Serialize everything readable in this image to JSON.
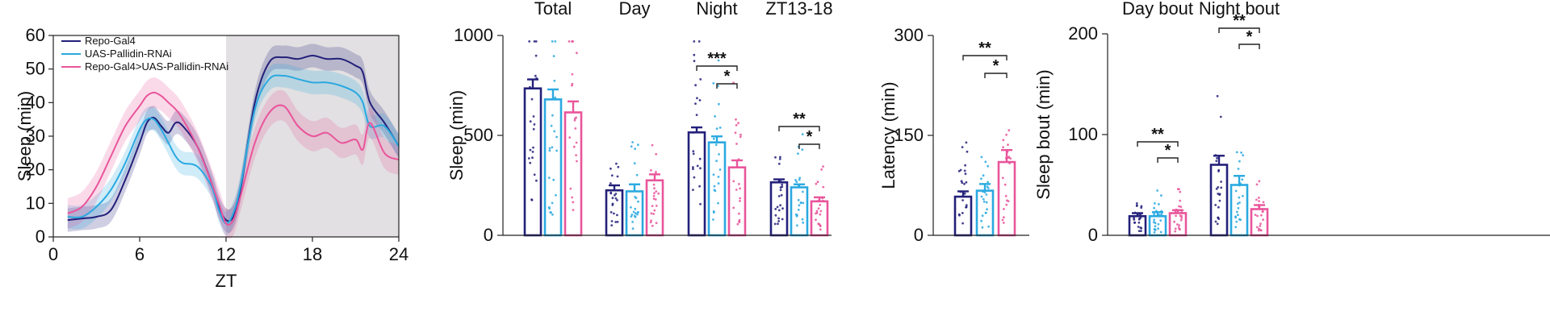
{
  "colors": {
    "control": "#23207a",
    "uas": "#2aa9e0",
    "exp": "#e9559b",
    "night_shade": "#e2e0e2"
  },
  "chart_data": [
    {
      "type": "line",
      "title": "",
      "xlabel": "ZT",
      "ylabel": "Sleep (min)",
      "xlim": [
        0,
        24
      ],
      "ylim": [
        0,
        60
      ],
      "xticks": [
        "0",
        "6",
        "12",
        "18",
        "24"
      ],
      "yticks": [
        "0",
        "10",
        "20",
        "30",
        "40",
        "50",
        "60"
      ],
      "night_shading": [
        12,
        24
      ],
      "x": [
        1,
        2,
        3,
        4,
        5,
        6,
        6.5,
        7,
        7.5,
        8,
        8.5,
        9,
        10,
        11,
        11.5,
        12,
        12.5,
        13,
        14,
        15,
        16,
        17,
        18,
        19,
        20,
        21,
        21.5,
        22,
        23,
        24
      ],
      "series": [
        {
          "name": "Repo-Gal4",
          "color_key": "control",
          "error": 3.5,
          "values": [
            5,
            5.5,
            6,
            8,
            17,
            28,
            34,
            35.5,
            33,
            31,
            34,
            33,
            27,
            16,
            9,
            5,
            6,
            14,
            40,
            52,
            53.5,
            53,
            54,
            53,
            53,
            51,
            49,
            40,
            34,
            27
          ]
        },
        {
          "name": "UAS-Pallidin-RNAi",
          "color_key": "uas",
          "error": 3.5,
          "values": [
            6,
            6,
            9,
            14,
            22,
            32,
            35,
            35,
            32,
            28,
            24,
            22,
            21,
            15,
            8,
            4,
            7,
            15,
            38,
            47,
            48,
            47,
            46,
            46,
            45,
            43,
            40,
            33,
            33,
            27
          ]
        },
        {
          "name": "Repo-Gal4>UAS-Pallidin-RNAi",
          "color_key": "exp",
          "error": 4.5,
          "values": [
            7,
            9,
            15,
            24,
            33,
            39,
            42,
            43,
            42,
            40,
            38,
            35,
            27,
            16,
            10,
            4,
            5,
            12,
            28,
            37,
            39,
            33,
            30,
            31,
            28,
            29,
            26,
            34,
            25,
            23
          ]
        }
      ]
    },
    {
      "type": "bar",
      "title": "",
      "ylabel": "Sleep (min)",
      "ylim": [
        0,
        1000
      ],
      "yticks": [
        "0",
        "500",
        "1000"
      ],
      "categories": [
        "Total",
        "Day",
        "Night",
        "ZT13-18"
      ],
      "series": [
        {
          "name": "Repo-Gal4",
          "color_key": "control",
          "values": [
            735,
            225,
            515,
            265
          ],
          "sem": [
            45,
            25,
            25,
            15
          ]
        },
        {
          "name": "UAS-Pallidin-RNAi",
          "color_key": "uas",
          "values": [
            680,
            220,
            465,
            240
          ],
          "sem": [
            50,
            35,
            30,
            15
          ]
        },
        {
          "name": "Repo-Gal4>UAS-Pallidin-RNAi",
          "color_key": "exp",
          "values": [
            615,
            275,
            340,
            170
          ],
          "sem": [
            55,
            30,
            35,
            20
          ]
        }
      ],
      "significance": [
        {
          "category": "Night",
          "from": 0,
          "to": 2,
          "label": "***"
        },
        {
          "category": "Night",
          "from": 1,
          "to": 2,
          "label": "*"
        },
        {
          "category": "ZT13-18",
          "from": 0,
          "to": 2,
          "label": "**"
        },
        {
          "category": "ZT13-18",
          "from": 1,
          "to": 2,
          "label": "*"
        }
      ]
    },
    {
      "type": "bar",
      "title": "",
      "ylabel": "Latency (min)",
      "ylim": [
        0,
        300
      ],
      "yticks": [
        "0",
        "150",
        "300"
      ],
      "categories": [
        ""
      ],
      "series": [
        {
          "name": "Repo-Gal4",
          "color_key": "control",
          "values": [
            58
          ],
          "sem": [
            8
          ]
        },
        {
          "name": "UAS-Pallidin-RNAi",
          "color_key": "uas",
          "values": [
            67
          ],
          "sem": [
            10
          ]
        },
        {
          "name": "Repo-Gal4>UAS-Pallidin-RNAi",
          "color_key": "exp",
          "values": [
            110
          ],
          "sem": [
            18
          ]
        }
      ],
      "significance": [
        {
          "category": "",
          "from": 0,
          "to": 2,
          "label": "**"
        },
        {
          "category": "",
          "from": 1,
          "to": 2,
          "label": "*"
        }
      ]
    },
    {
      "type": "bar",
      "title": "",
      "ylabel": "Sleep bout (min)",
      "ylim": [
        0,
        200
      ],
      "yticks": [
        "0",
        "100",
        "200"
      ],
      "categories": [
        "Day bout",
        "Night bout"
      ],
      "series": [
        {
          "name": "Repo-Gal4",
          "color_key": "control",
          "values": [
            19,
            70
          ],
          "sem": [
            3,
            9
          ]
        },
        {
          "name": "UAS-Pallidin-RNAi",
          "color_key": "uas",
          "values": [
            19,
            50
          ],
          "sem": [
            4,
            9
          ]
        },
        {
          "name": "Repo-Gal4>UAS-Pallidin-RNAi",
          "color_key": "exp",
          "values": [
            22,
            26
          ],
          "sem": [
            3,
            4
          ]
        }
      ],
      "significance": [
        {
          "category": "Day bout",
          "from": 0,
          "to": 2,
          "label": "**"
        },
        {
          "category": "Day bout",
          "from": 1,
          "to": 2,
          "label": "*"
        },
        {
          "category": "Night bout",
          "from": 0,
          "to": 2,
          "label": "**"
        },
        {
          "category": "Night bout",
          "from": 1,
          "to": 2,
          "label": "*"
        }
      ]
    }
  ]
}
